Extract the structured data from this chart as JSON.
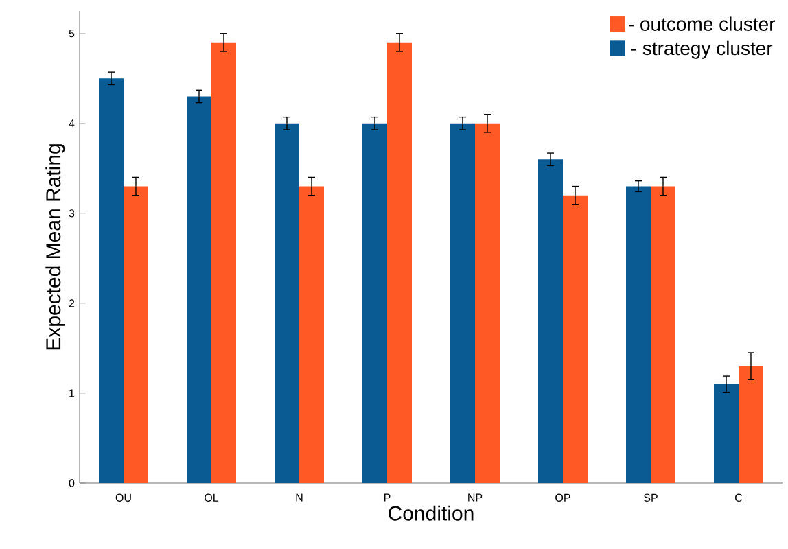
{
  "chart_data": {
    "type": "bar",
    "xlabel": "Condition",
    "ylabel": "Expected Mean Rating",
    "categories": [
      "OU",
      "OL",
      "N",
      "P",
      "NP",
      "OP",
      "SP",
      "C"
    ],
    "series": [
      {
        "name": "- strategy cluster",
        "color": "#0a5a94",
        "values": [
          4.5,
          4.3,
          4.0,
          4.0,
          4.0,
          3.6,
          3.3,
          1.1
        ],
        "errors": [
          0.07,
          0.07,
          0.07,
          0.07,
          0.07,
          0.07,
          0.06,
          0.09
        ]
      },
      {
        "name": "- outcome cluster",
        "color": "#ff5a26",
        "values": [
          3.3,
          4.9,
          3.3,
          4.9,
          4.0,
          3.2,
          3.3,
          1.3
        ],
        "errors": [
          0.1,
          0.1,
          0.1,
          0.1,
          0.1,
          0.1,
          0.1,
          0.15
        ]
      }
    ],
    "ylim": [
      0,
      5.25
    ],
    "yticks": [
      0,
      1,
      2,
      3,
      4,
      5
    ],
    "grid": false,
    "legend": "top right"
  }
}
